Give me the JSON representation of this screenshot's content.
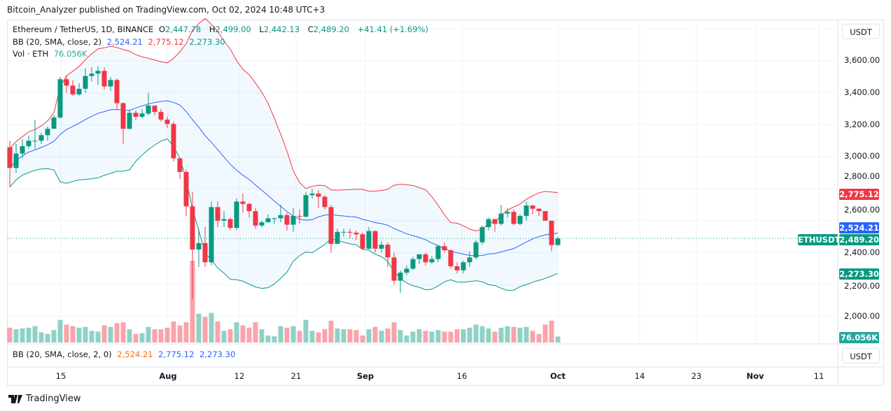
{
  "header": {
    "published": "Bitcoin_Analyzer published on TradingView.com, Oct 02, 2024 10:48 UTC+3"
  },
  "legend": {
    "symbol": "Ethereum / TetherUS, 1D, BINANCE",
    "o_label": "O",
    "o": "2,447.78",
    "h_label": "H",
    "h": "2,499.00",
    "l_label": "L",
    "l": "2,442.13",
    "c_label": "C",
    "c": "2,489.20",
    "change": "+41.41 (+1.69%)",
    "bb_label": "BB (20, SMA, close, 2)",
    "bb_basis": "2,524.21",
    "bb_upper": "2,775.12",
    "bb_lower": "2,273.30",
    "vol_label": "Vol · ETH",
    "vol": "76.056K"
  },
  "lower_pane": {
    "label": "BB (20, SMA, close, 2, 0)",
    "basis": "2,524.21",
    "upper": "2,775.12",
    "lower": "2,273.30",
    "unit": "USDT"
  },
  "price_axis": {
    "unit": "USDT",
    "ticks": [
      "3,600.00",
      "3,400.00",
      "3,200.00",
      "3,000.00",
      "2,800.00",
      "2,600.00",
      "2,400.00",
      "2,200.00",
      "2,000.00"
    ],
    "tags": {
      "upper": "2,775.12",
      "basis": "2,524.21",
      "last": "2,489.20",
      "lower": "2,273.30",
      "volume": "76.056K",
      "symbol": "ETHUSDT"
    }
  },
  "time_axis": [
    "15",
    "Aug",
    "12",
    "21",
    "Sep",
    "16",
    "Oct",
    "14",
    "23",
    "Nov",
    "11"
  ],
  "colors": {
    "up": "#089981",
    "down": "#f23645",
    "basis": "#2962ff",
    "upper": "#f23645",
    "lower": "#089981"
  },
  "footer": {
    "brand": "TradingView"
  },
  "chart_data": {
    "type": "candlestick",
    "title": "Ethereum / TetherUS, 1D, BINANCE",
    "start_date": "2024-07-07",
    "end_date": "2024-10-02",
    "ylim": [
      1900,
      3850
    ],
    "indicators": [
      "BB (20, SMA, close, 2)",
      "Volume"
    ],
    "grid": true,
    "closes": [
      2930,
      3020,
      3066,
      3100,
      3100,
      3135,
      3175,
      3245,
      3485,
      3445,
      3390,
      3425,
      3505,
      3520,
      3537,
      3440,
      3480,
      3335,
      3175,
      3275,
      3250,
      3270,
      3320,
      3280,
      3232,
      3205,
      2990,
      2905,
      2690,
      2420,
      2460,
      2340,
      2685,
      2600,
      2610,
      2555,
      2720,
      2705,
      2660,
      2570,
      2590,
      2615,
      2615,
      2635,
      2575,
      2630,
      2625,
      2760,
      2770,
      2750,
      2685,
      2455,
      2530,
      2530,
      2525,
      2515,
      2425,
      2535,
      2425,
      2450,
      2370,
      2225,
      2275,
      2300,
      2360,
      2390,
      2340,
      2360,
      2440,
      2415,
      2315,
      2290,
      2340,
      2370,
      2465,
      2560,
      2610,
      2580,
      2645,
      2655,
      2580,
      2630,
      2695,
      2675,
      2660,
      2600,
      2447.78,
      2489.2
    ],
    "first_open": 3060,
    "highs": [
      3100,
      3080,
      3110,
      3130,
      3230,
      3150,
      3190,
      3260,
      3500,
      3510,
      3480,
      3460,
      3555,
      3560,
      3565,
      3560,
      3500,
      3490,
      3340,
      3295,
      3290,
      3300,
      3400,
      3320,
      3300,
      3250,
      3220,
      2990,
      2920,
      2780,
      2550,
      2560,
      2720,
      2720,
      2660,
      2620,
      2740,
      2770,
      2710,
      2680,
      2600,
      2640,
      2620,
      2700,
      2650,
      2680,
      2670,
      2780,
      2800,
      2790,
      2760,
      2700,
      2550,
      2550,
      2550,
      2540,
      2525,
      2560,
      2540,
      2470,
      2465,
      2400,
      2290,
      2320,
      2375,
      2390,
      2400,
      2380,
      2450,
      2465,
      2420,
      2340,
      2350,
      2410,
      2480,
      2570,
      2620,
      2600,
      2700,
      2680,
      2670,
      2640,
      2720,
      2700,
      2680,
      2660,
      2600,
      2499
    ],
    "lows": [
      2810,
      2900,
      2990,
      3050,
      3050,
      3080,
      3100,
      3220,
      3240,
      3400,
      3380,
      3380,
      3400,
      3470,
      3450,
      3420,
      3410,
      3300,
      3080,
      3170,
      3230,
      3240,
      3260,
      3260,
      3220,
      3180,
      2970,
      2860,
      2630,
      2110,
      2310,
      2310,
      2320,
      2560,
      2560,
      2540,
      2540,
      2650,
      2620,
      2550,
      2560,
      2590,
      2580,
      2590,
      2540,
      2530,
      2580,
      2620,
      2740,
      2680,
      2670,
      2400,
      2460,
      2500,
      2490,
      2480,
      2420,
      2420,
      2400,
      2400,
      2310,
      2200,
      2150,
      2260,
      2290,
      2330,
      2320,
      2330,
      2340,
      2400,
      2300,
      2270,
      2270,
      2310,
      2360,
      2450,
      2540,
      2530,
      2570,
      2620,
      2570,
      2570,
      2600,
      2640,
      2630,
      2600,
      2410,
      2442
    ],
    "volume_k": [
      190,
      170,
      180,
      190,
      210,
      130,
      110,
      160,
      290,
      230,
      210,
      190,
      200,
      150,
      140,
      220,
      200,
      250,
      260,
      170,
      110,
      120,
      200,
      170,
      170,
      190,
      270,
      220,
      260,
      1050,
      370,
      330,
      380,
      270,
      150,
      170,
      260,
      220,
      190,
      260,
      170,
      90,
      80,
      210,
      190,
      210,
      150,
      290,
      150,
      130,
      170,
      280,
      180,
      170,
      170,
      160,
      90,
      170,
      200,
      150,
      180,
      260,
      160,
      90,
      140,
      170,
      150,
      140,
      160,
      140,
      140,
      170,
      170,
      190,
      230,
      210,
      180,
      140,
      190,
      210,
      200,
      190,
      200,
      150,
      110,
      230,
      280,
      76.056
    ]
  }
}
